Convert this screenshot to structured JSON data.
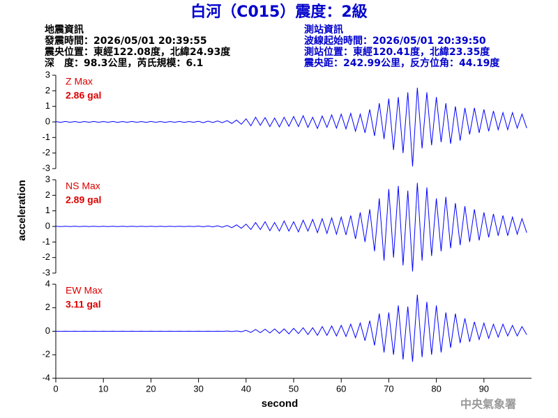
{
  "title": "白河（C015）震度：2級",
  "left_info": [
    "地震資訊",
    "發震時間：2026/05/01 20:39:55",
    "震央位置：東經122.08度，北緯24.93度",
    "深　度：98.3公里，芮氏規模：6.1"
  ],
  "right_info": [
    "測站資訊",
    "波線起始時間：2026/05/01 20:39:50",
    "測站位置：東經120.41度，北緯23.35度",
    "震央距：242.99公里，反方位角：44.19度"
  ],
  "ylabel": "acceleration",
  "footer": "中央氣象署",
  "chart_data": [
    {
      "type": "line",
      "name": "Z Max",
      "annotation": "2.86 gal",
      "color": "#0000ff",
      "xlim": [
        0,
        100
      ],
      "ylim": [
        -3,
        3
      ],
      "yticks": [
        -3,
        -2,
        -1,
        0,
        1,
        2,
        3
      ],
      "x": [
        0,
        1,
        2,
        3,
        4,
        5,
        6,
        7,
        8,
        9,
        10,
        11,
        12,
        13,
        14,
        15,
        16,
        17,
        18,
        19,
        20,
        21,
        22,
        23,
        24,
        25,
        26,
        27,
        28,
        29,
        30,
        31,
        32,
        33,
        34,
        35,
        36,
        37,
        38,
        39,
        40,
        41,
        42,
        43,
        44,
        45,
        46,
        47,
        48,
        49,
        50,
        51,
        52,
        53,
        54,
        55,
        56,
        57,
        58,
        59,
        60,
        61,
        62,
        63,
        64,
        65,
        66,
        67,
        68,
        69,
        70,
        71,
        72,
        73,
        74,
        75,
        76,
        77,
        78,
        79,
        80,
        81,
        82,
        83,
        84,
        85,
        86,
        87,
        88,
        89,
        90,
        91,
        92,
        93,
        94,
        95,
        96,
        97,
        98,
        99
      ],
      "values": [
        0.02,
        -0.03,
        0.03,
        -0.02,
        0.02,
        -0.03,
        0.02,
        -0.02,
        0.03,
        -0.02,
        0.02,
        -0.02,
        0.03,
        -0.03,
        0.02,
        -0.02,
        0.03,
        -0.02,
        0.02,
        -0.03,
        0.03,
        -0.02,
        0.02,
        -0.03,
        0.02,
        -0.02,
        0.03,
        -0.03,
        0.02,
        -0.02,
        0.04,
        -0.05,
        0.05,
        -0.04,
        0.06,
        -0.05,
        0.08,
        -0.1,
        0.12,
        -0.15,
        0.2,
        -0.25,
        0.3,
        -0.22,
        0.28,
        -0.3,
        0.25,
        -0.32,
        0.3,
        -0.28,
        0.35,
        -0.3,
        0.4,
        -0.35,
        0.3,
        -0.42,
        0.38,
        -0.35,
        0.45,
        -0.4,
        0.5,
        -0.45,
        0.55,
        -0.6,
        0.5,
        -0.7,
        0.8,
        -0.9,
        1.2,
        -1.1,
        1.5,
        -1.8,
        1.6,
        -2.0,
        1.9,
        -2.86,
        2.2,
        -1.7,
        1.9,
        -1.5,
        1.6,
        -1.3,
        1.2,
        -1.4,
        1.0,
        -1.2,
        0.9,
        -0.8,
        0.9,
        -0.7,
        0.8,
        -0.6,
        0.7,
        -0.5,
        0.6,
        -0.5,
        0.6,
        -0.4,
        0.5,
        -0.4
      ]
    },
    {
      "type": "line",
      "name": "NS Max",
      "annotation": "2.89 gal",
      "color": "#0000ff",
      "xlim": [
        0,
        100
      ],
      "ylim": [
        -3,
        3
      ],
      "yticks": [
        -3,
        -2,
        -1,
        0,
        1,
        2,
        3
      ],
      "x": [
        0,
        1,
        2,
        3,
        4,
        5,
        6,
        7,
        8,
        9,
        10,
        11,
        12,
        13,
        14,
        15,
        16,
        17,
        18,
        19,
        20,
        21,
        22,
        23,
        24,
        25,
        26,
        27,
        28,
        29,
        30,
        31,
        32,
        33,
        34,
        35,
        36,
        37,
        38,
        39,
        40,
        41,
        42,
        43,
        44,
        45,
        46,
        47,
        48,
        49,
        50,
        51,
        52,
        53,
        54,
        55,
        56,
        57,
        58,
        59,
        60,
        61,
        62,
        63,
        64,
        65,
        66,
        67,
        68,
        69,
        70,
        71,
        72,
        73,
        74,
        75,
        76,
        77,
        78,
        79,
        80,
        81,
        82,
        83,
        84,
        85,
        86,
        87,
        88,
        89,
        90,
        91,
        92,
        93,
        94,
        95,
        96,
        97,
        98,
        99
      ],
      "values": [
        0.01,
        -0.01,
        0.01,
        -0.01,
        0.01,
        -0.01,
        0.01,
        -0.01,
        0.01,
        -0.01,
        0.01,
        -0.01,
        0.01,
        -0.01,
        0.01,
        -0.01,
        0.01,
        -0.01,
        0.01,
        -0.01,
        0.01,
        -0.01,
        0.01,
        -0.01,
        0.01,
        -0.01,
        0.01,
        -0.01,
        0.01,
        -0.01,
        0.02,
        -0.02,
        0.03,
        -0.03,
        0.04,
        -0.05,
        0.06,
        -0.08,
        0.1,
        -0.12,
        0.15,
        -0.2,
        0.25,
        -0.2,
        0.3,
        -0.28,
        0.25,
        -0.3,
        0.35,
        -0.3,
        0.3,
        -0.35,
        0.4,
        -0.3,
        0.45,
        -0.4,
        0.5,
        -0.45,
        0.55,
        -0.5,
        0.6,
        -0.55,
        0.7,
        -0.8,
        0.9,
        -1.0,
        1.1,
        -1.6,
        1.8,
        -2.2,
        2.4,
        -2.0,
        2.6,
        -2.5,
        2.3,
        -2.89,
        2.8,
        -2.2,
        2.5,
        -1.9,
        1.8,
        -1.6,
        1.9,
        -1.4,
        1.5,
        -1.2,
        1.3,
        -1.0,
        1.1,
        -0.9,
        0.9,
        -0.7,
        0.8,
        -0.6,
        0.7,
        -0.6,
        0.6,
        -0.5,
        0.5,
        -0.4
      ]
    },
    {
      "type": "line",
      "name": "EW Max",
      "annotation": "3.11 gal",
      "color": "#0000ff",
      "xlim": [
        0,
        100
      ],
      "ylim": [
        -4,
        4
      ],
      "yticks": [
        -4,
        -2,
        0,
        2,
        4
      ],
      "xticks": [
        0,
        10,
        20,
        30,
        40,
        50,
        60,
        70,
        80,
        90
      ],
      "xlabel": "second",
      "x": [
        0,
        1,
        2,
        3,
        4,
        5,
        6,
        7,
        8,
        9,
        10,
        11,
        12,
        13,
        14,
        15,
        16,
        17,
        18,
        19,
        20,
        21,
        22,
        23,
        24,
        25,
        26,
        27,
        28,
        29,
        30,
        31,
        32,
        33,
        34,
        35,
        36,
        37,
        38,
        39,
        40,
        41,
        42,
        43,
        44,
        45,
        46,
        47,
        48,
        49,
        50,
        51,
        52,
        53,
        54,
        55,
        56,
        57,
        58,
        59,
        60,
        61,
        62,
        63,
        64,
        65,
        66,
        67,
        68,
        69,
        70,
        71,
        72,
        73,
        74,
        75,
        76,
        77,
        78,
        79,
        80,
        81,
        82,
        83,
        84,
        85,
        86,
        87,
        88,
        89,
        90,
        91,
        92,
        93,
        94,
        95,
        96,
        97,
        98,
        99
      ],
      "values": [
        0.01,
        -0.01,
        0.01,
        -0.01,
        0.01,
        -0.01,
        0.01,
        -0.01,
        0.01,
        -0.01,
        0.01,
        -0.01,
        0.01,
        -0.01,
        0.01,
        -0.01,
        0.01,
        -0.01,
        0.01,
        -0.01,
        0.01,
        -0.01,
        0.01,
        -0.01,
        0.01,
        -0.01,
        0.01,
        -0.01,
        0.01,
        -0.01,
        0.01,
        -0.01,
        0.01,
        -0.01,
        0.01,
        -0.01,
        0.02,
        -0.02,
        0.03,
        -0.04,
        0.08,
        -0.1,
        0.15,
        -0.12,
        0.18,
        -0.15,
        0.2,
        -0.18,
        0.2,
        -0.22,
        0.25,
        -0.2,
        0.3,
        -0.28,
        0.3,
        -0.35,
        0.4,
        -0.35,
        0.45,
        -0.4,
        0.5,
        -0.45,
        0.6,
        -0.55,
        0.7,
        -0.8,
        0.9,
        -1.2,
        1.5,
        -1.8,
        1.6,
        -2.0,
        2.2,
        -2.4,
        2.1,
        -2.6,
        3.11,
        -2.2,
        2.5,
        -2.0,
        2.2,
        -1.8,
        1.6,
        -1.4,
        1.5,
        -1.0,
        1.1,
        -0.9,
        0.8,
        -0.7,
        0.7,
        -0.6,
        0.6,
        -0.5,
        0.6,
        -0.4,
        0.5,
        -0.4,
        0.4,
        -0.3
      ]
    }
  ]
}
